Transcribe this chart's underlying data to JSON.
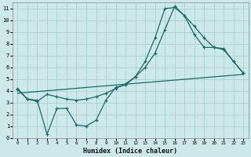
{
  "xlabel": "Humidex (Indice chaleur)",
  "bg_color": "#cce8e8",
  "grid_color": "#aacfcf",
  "line_color": "#1a6b6b",
  "xlim": [
    -0.5,
    23.5
  ],
  "ylim": [
    0,
    11.5
  ],
  "xticks": [
    0,
    1,
    2,
    3,
    4,
    5,
    6,
    7,
    8,
    9,
    10,
    11,
    12,
    13,
    14,
    15,
    16,
    17,
    18,
    19,
    20,
    21,
    22,
    23
  ],
  "yticks": [
    0,
    1,
    2,
    3,
    4,
    5,
    6,
    7,
    8,
    9,
    10,
    11
  ],
  "line1_x": [
    0,
    1,
    2,
    3,
    4,
    5,
    6,
    7,
    8,
    9,
    10,
    11,
    12,
    13,
    14,
    15,
    16,
    17,
    18,
    19,
    20,
    21,
    22,
    23
  ],
  "line1_y": [
    4.2,
    3.3,
    3.2,
    0.3,
    2.5,
    2.5,
    1.1,
    1.0,
    1.5,
    3.2,
    4.3,
    4.5,
    5.2,
    6.5,
    8.5,
    11.0,
    11.1,
    10.4,
    8.8,
    7.7,
    7.7,
    7.6,
    6.5,
    5.5
  ],
  "line2_x": [
    0,
    1,
    2,
    3,
    4,
    5,
    6,
    7,
    8,
    9,
    10,
    11,
    12,
    13,
    14,
    15,
    16,
    17,
    18,
    19,
    20,
    21,
    22,
    23
  ],
  "line2_y": [
    4.1,
    3.3,
    3.1,
    3.7,
    3.5,
    3.3,
    3.2,
    3.3,
    3.5,
    3.8,
    4.2,
    4.6,
    5.2,
    6.0,
    7.2,
    9.2,
    11.2,
    10.4,
    9.5,
    8.5,
    7.7,
    7.5,
    6.5,
    5.5
  ],
  "line3_x": [
    0,
    23
  ],
  "line3_y": [
    3.8,
    5.4
  ]
}
